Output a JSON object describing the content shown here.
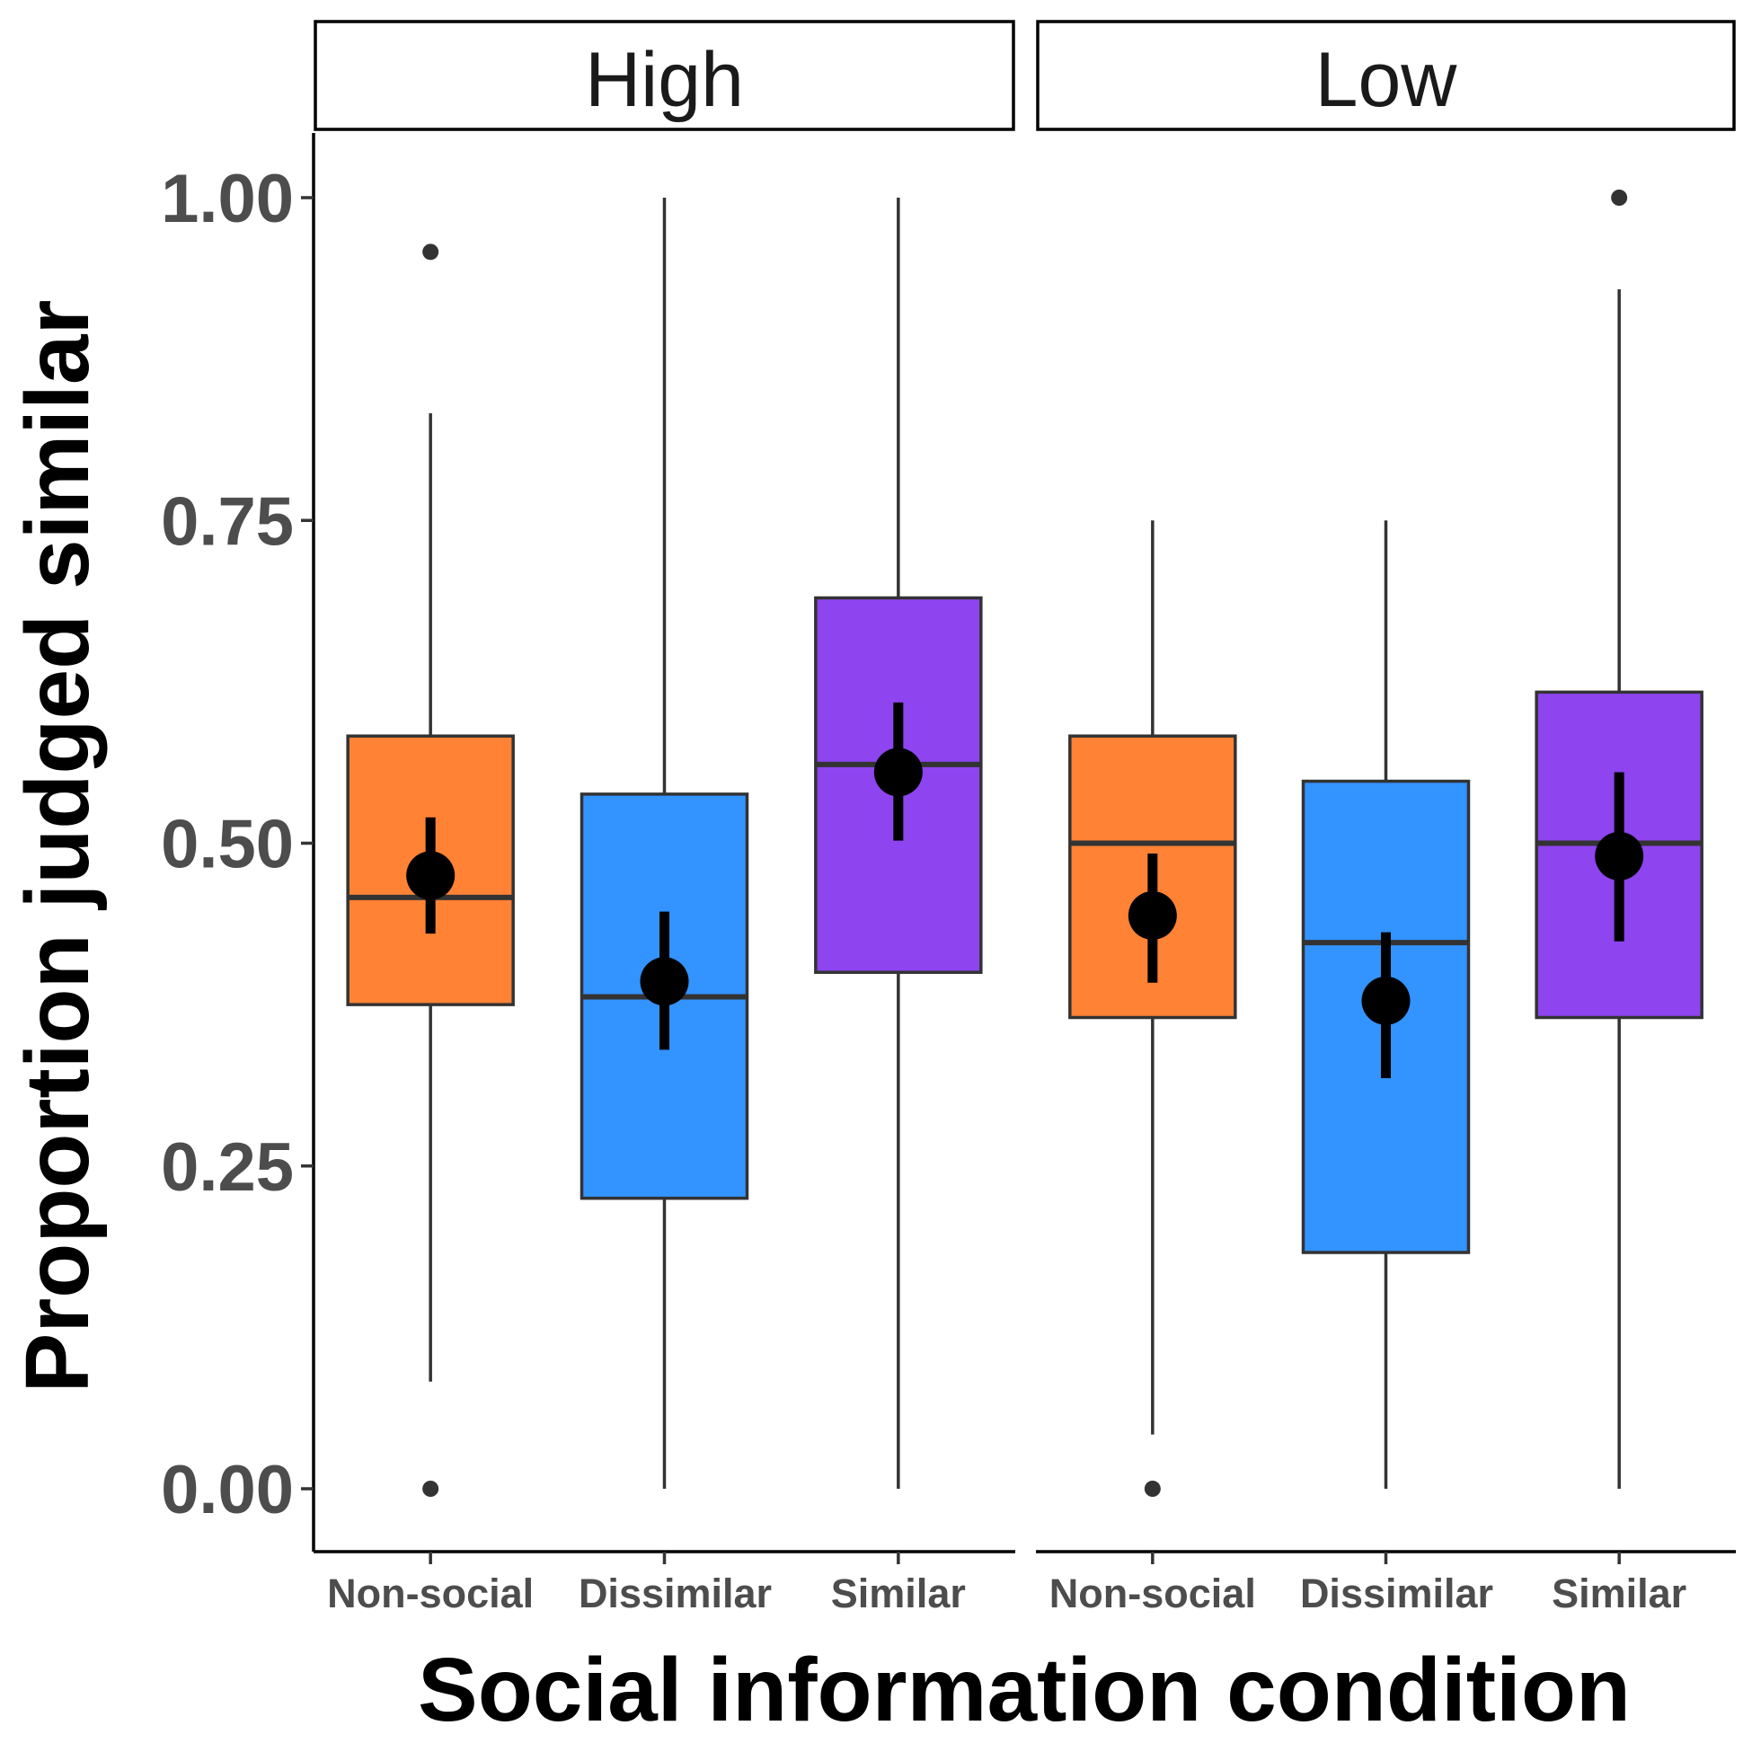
{
  "chart_data": {
    "type": "boxplot",
    "xlabel": "Social information condition",
    "ylabel": "Proportion judged similar",
    "ylim": [
      -0.05,
      1.05
    ],
    "yticks": [
      0.0,
      0.25,
      0.5,
      0.75,
      1.0
    ],
    "ytick_labels": [
      "0.00",
      "0.25",
      "0.50",
      "0.75",
      "1.00"
    ],
    "categories": [
      "Non-social",
      "Dissimilar",
      "Similar"
    ],
    "colors": {
      "Non-social": "#FF8235",
      "Dissimilar": "#3393FF",
      "Similar": "#8E44EF"
    },
    "grid": false,
    "legend": "none",
    "panels": [
      {
        "label": "High",
        "boxes": [
          {
            "category": "Non-social",
            "lower_whisker": 0.083,
            "q1": 0.375,
            "median": 0.458,
            "q3": 0.583,
            "upper_whisker": 0.833,
            "outliers": [
              0.0,
              0.958
            ],
            "mean": 0.475,
            "ci_low": 0.43,
            "ci_high": 0.52
          },
          {
            "category": "Dissimilar",
            "lower_whisker": 0.0,
            "q1": 0.225,
            "median": 0.381,
            "q3": 0.538,
            "upper_whisker": 1.0,
            "outliers": [],
            "mean": 0.393,
            "ci_low": 0.34,
            "ci_high": 0.447
          },
          {
            "category": "Similar",
            "lower_whisker": 0.0,
            "q1": 0.4,
            "median": 0.561,
            "q3": 0.69,
            "upper_whisker": 1.0,
            "outliers": [],
            "mean": 0.555,
            "ci_low": 0.502,
            "ci_high": 0.609
          }
        ]
      },
      {
        "label": "Low",
        "boxes": [
          {
            "category": "Non-social",
            "lower_whisker": 0.042,
            "q1": 0.365,
            "median": 0.5,
            "q3": 0.583,
            "upper_whisker": 0.75,
            "outliers": [
              0.0
            ],
            "mean": 0.444,
            "ci_low": 0.392,
            "ci_high": 0.492
          },
          {
            "category": "Dissimilar",
            "lower_whisker": 0.0,
            "q1": 0.183,
            "median": 0.423,
            "q3": 0.548,
            "upper_whisker": 0.75,
            "outliers": [],
            "mean": 0.378,
            "ci_low": 0.318,
            "ci_high": 0.431
          },
          {
            "category": "Similar",
            "lower_whisker": 0.0,
            "q1": 0.365,
            "median": 0.5,
            "q3": 0.617,
            "upper_whisker": 0.929,
            "outliers": [
              1.0
            ],
            "mean": 0.49,
            "ci_low": 0.424,
            "ci_high": 0.555
          }
        ]
      }
    ]
  }
}
